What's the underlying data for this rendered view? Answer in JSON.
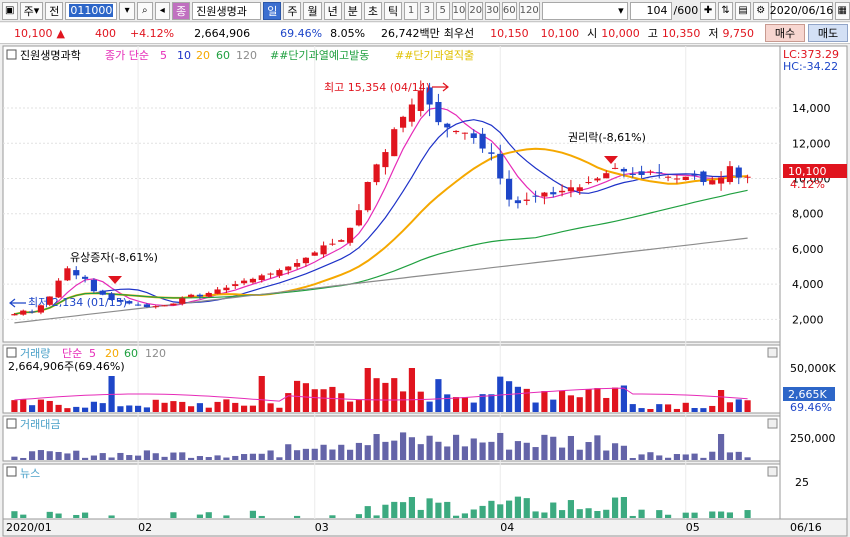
{
  "toolbar": {
    "market": "주",
    "prev": "전",
    "code": "011000",
    "name_badge": "종",
    "name": "진원생명과",
    "periods": [
      "일",
      "주",
      "월",
      "년",
      "분",
      "초",
      "틱"
    ],
    "intervals": [
      "1",
      "3",
      "5",
      "10",
      "20",
      "30",
      "60",
      "120"
    ],
    "count": "104",
    "count_total": "/600",
    "date": "2020/06/16"
  },
  "quote": {
    "price": "10,100",
    "change": "400",
    "change_pct": "+4.12%",
    "volume": "2,664,906",
    "vol_ratio": "69.46%",
    "turnover": "8.05%",
    "amount": "26,742백만",
    "best_label": "최우선",
    "best_ask": "10,150",
    "best_bid": "10,100",
    "open_label": "시",
    "open": "10,000",
    "high_label": "고",
    "high": "10,350",
    "low_label": "저",
    "low": "9,750",
    "buy": "매수",
    "sell": "매도"
  },
  "panels": {
    "price_title": "진원생명과학",
    "ma_label": "종가 단순",
    "ma_periods": [
      "5",
      "10",
      "20",
      "60",
      "120"
    ],
    "signal1": "##단기과열예고발동",
    "signal2": "##단기과열직출",
    "lc": "LC:373.29",
    "hc": "HC:-34.22",
    "volume_title": "거래량",
    "volume_ma_label": "단순",
    "volume_ma_periods": [
      "5",
      "20",
      "60",
      "120"
    ],
    "volume_value": "2,664,906주(69.46%)",
    "volume_axis": "50,000K",
    "volume_last": "2,665K",
    "volume_last_pct": "69.46%",
    "amount_title": "거래대금",
    "amount_axis": "250,000",
    "news_title": "뉴스",
    "news_axis": "25"
  },
  "annotations": {
    "high": "최고 15,354 (04/14)",
    "low": "최저 2,134 (01/15)",
    "capital_increase": "유상증자(-8,61%)",
    "rights": "권리락(-8,61%)"
  },
  "price_current": {
    "label": "10,100",
    "pct": "4.12%"
  },
  "colors": {
    "up": "#e0141e",
    "down": "#1e46c8",
    "ma5": "#e62bb8",
    "ma10": "#1e32c8",
    "ma20": "#f5a800",
    "ma60": "#20a040",
    "ma120": "#8c8c8c"
  },
  "chart_data": {
    "type": "candlestick",
    "y_ticks": [
      2000,
      4000,
      6000,
      8000,
      10000,
      12000,
      14000
    ],
    "ylim": [
      1000,
      16500
    ],
    "x_labels": [
      "2020/01",
      "02",
      "03",
      "04",
      "05",
      "06",
      "06/16"
    ],
    "close": [
      2300,
      2500,
      2400,
      2800,
      3300,
      4200,
      4900,
      4500,
      4300,
      3600,
      3400,
      3100,
      3000,
      2900,
      2800,
      2700,
      2750,
      2800,
      2900,
      3200,
      3400,
      3300,
      3500,
      3700,
      3800,
      4000,
      4200,
      4300,
      4500,
      4600,
      4800,
      5000,
      5200,
      5500,
      5800,
      6200,
      6300,
      6500,
      7200,
      8200,
      9800,
      10800,
      11500,
      12800,
      13500,
      14200,
      15000,
      14200,
      13200,
      12900,
      12700,
      12600,
      12300,
      11700,
      11400,
      10000,
      8800,
      8600,
      8800,
      9000,
      9200,
      9100,
      9300,
      9500,
      9500,
      9800,
      10000,
      10300,
      10600,
      10400,
      10200,
      10200,
      10400,
      10300,
      10100,
      10000,
      10100,
      10200,
      9800,
      9900,
      10050,
      10700,
      10050,
      10100
    ]
  }
}
